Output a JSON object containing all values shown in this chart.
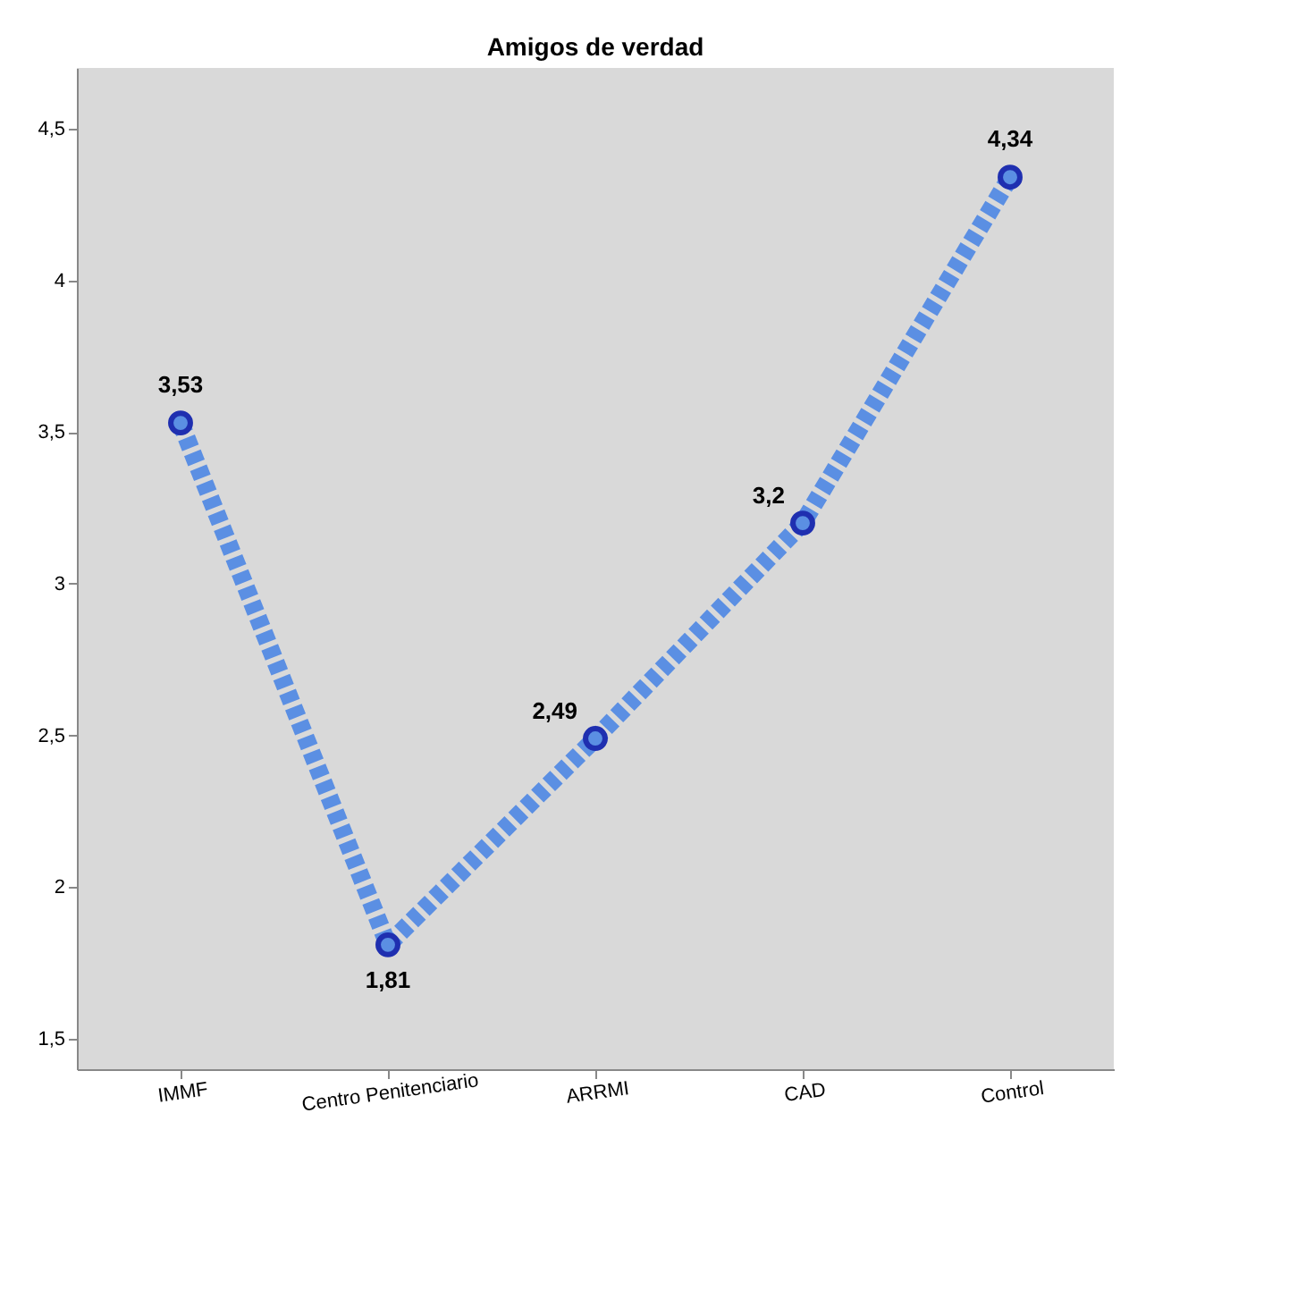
{
  "chart_data": {
    "type": "line",
    "title": "Amigos de verdad",
    "categories": [
      "IMMF",
      "Centro Penitenciario",
      "ARRMI",
      "CAD",
      "Control"
    ],
    "series": [
      {
        "color": "#5b8fe3",
        "values": [
          3.53,
          1.81,
          2.49,
          3.2,
          4.34
        ],
        "value_labels": [
          "3,53",
          "1,81",
          "2,49",
          "3,2",
          "4,34"
        ]
      }
    ],
    "ylim": [
      1.4,
      4.7
    ],
    "yticks": [
      {
        "value": 1.5,
        "label": "1,5"
      },
      2,
      {
        "value": 2.5,
        "label": "2,5"
      },
      3,
      {
        "value": 3.5,
        "label": "3,5"
      },
      4,
      {
        "value": 4.5,
        "label": "4,5"
      }
    ],
    "grid": false,
    "marker": "circle",
    "line_style": "dashed"
  }
}
